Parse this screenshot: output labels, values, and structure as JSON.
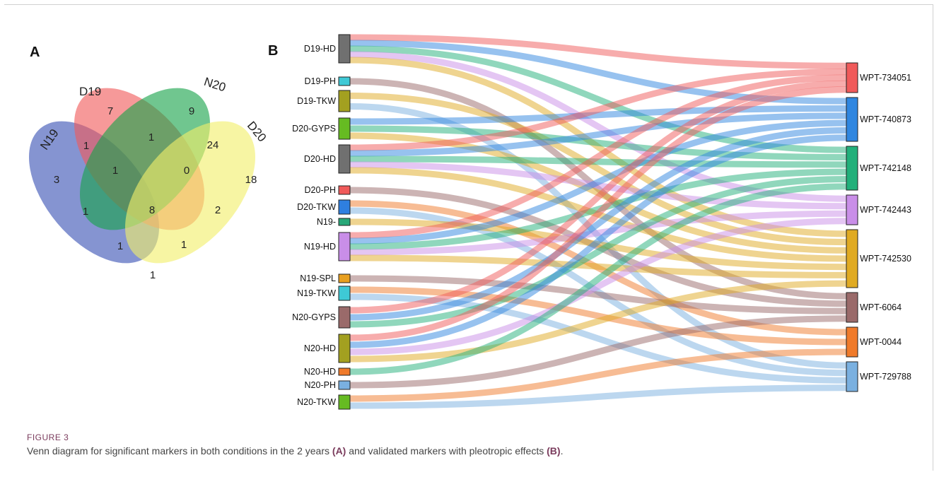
{
  "figure": {
    "label": "FIGURE 3",
    "caption_parts": [
      "Venn diagram for significant markers in both conditions in the 2 years ",
      "(A)",
      " and validated markers with pleotropic effects ",
      "(B)",
      "."
    ],
    "accent_color": "#7a3b5c"
  },
  "panel_a": {
    "letter": "A",
    "sets": [
      {
        "name": "N19",
        "color": "#3a52b5"
      },
      {
        "name": "D19",
        "color": "#f05a5a"
      },
      {
        "name": "N20",
        "color": "#18a34a"
      },
      {
        "name": "D20",
        "color": "#f2ef6a"
      }
    ],
    "counts": {
      "N19_only": "3",
      "D19_only": "7",
      "N20_only": "9",
      "D20_only": "18",
      "N19_D19": "1",
      "D19_N20": "1",
      "N20_D20": "24",
      "N19_D19_N20": "1",
      "D19_N20_D20": "0",
      "N19_N20": "1",
      "all": "8",
      "D19_D20": "2",
      "N19_N20_D20": "1",
      "N19_D19_D20": "1",
      "N19_D20": "1"
    }
  },
  "panel_b": {
    "letter": "B",
    "left_nodes": [
      {
        "label": "D19-HD",
        "color": "#707070"
      },
      {
        "label": "D19-PH",
        "color": "#3ec9d6"
      },
      {
        "label": "D19-TKW",
        "color": "#a3a020"
      },
      {
        "label": "D20-GYPS",
        "color": "#66bb22"
      },
      {
        "label": "D20-HD",
        "color": "#707070"
      },
      {
        "label": "D20-PH",
        "color": "#f05a5a"
      },
      {
        "label": "D20-TKW",
        "color": "#2f7fe0"
      },
      {
        "label": "N19-",
        "color": "#28a878"
      },
      {
        "label": "N19-HD",
        "color": "#c98ee8"
      },
      {
        "label": "N19-SPL",
        "color": "#e8a020"
      },
      {
        "label": "N19-TKW",
        "color": "#3ec9d6"
      },
      {
        "label": "N20-GYPS",
        "color": "#9a6a6a"
      },
      {
        "label": "N20-HD",
        "color": "#a3a020"
      },
      {
        "label": "N20-HD",
        "color": "#f07a2a"
      },
      {
        "label": "N20-PH",
        "color": "#7ab0e0"
      },
      {
        "label": "N20-TKW",
        "color": "#66bb22"
      }
    ],
    "right_nodes": [
      {
        "label": "WPT-734051",
        "color": "#f05a5a"
      },
      {
        "label": "WPT-740873",
        "color": "#2f86e0"
      },
      {
        "label": "WPT-742148",
        "color": "#22b07a"
      },
      {
        "label": "WPT-742443",
        "color": "#c98ee8"
      },
      {
        "label": "WPT-742530",
        "color": "#e0aa22"
      },
      {
        "label": "WPT-6064",
        "color": "#9a6a6a"
      },
      {
        "label": "WPT-0044",
        "color": "#f07a2a"
      },
      {
        "label": "WPT-729788",
        "color": "#7ab0e0"
      }
    ],
    "links": [
      [
        0,
        0
      ],
      [
        0,
        1
      ],
      [
        0,
        2
      ],
      [
        0,
        3
      ],
      [
        0,
        4
      ],
      [
        1,
        5
      ],
      [
        2,
        4
      ],
      [
        2,
        7
      ],
      [
        3,
        1
      ],
      [
        3,
        2
      ],
      [
        3,
        4
      ],
      [
        4,
        0
      ],
      [
        4,
        1
      ],
      [
        4,
        2
      ],
      [
        4,
        3
      ],
      [
        4,
        4
      ],
      [
        5,
        5
      ],
      [
        6,
        6
      ],
      [
        6,
        7
      ],
      [
        7,
        4
      ],
      [
        8,
        0
      ],
      [
        8,
        1
      ],
      [
        8,
        2
      ],
      [
        8,
        3
      ],
      [
        8,
        4
      ],
      [
        9,
        5
      ],
      [
        10,
        6
      ],
      [
        10,
        7
      ],
      [
        11,
        0
      ],
      [
        11,
        1
      ],
      [
        11,
        2
      ],
      [
        12,
        0
      ],
      [
        12,
        1
      ],
      [
        12,
        3
      ],
      [
        12,
        4
      ],
      [
        13,
        2
      ],
      [
        14,
        5
      ],
      [
        15,
        6
      ],
      [
        15,
        7
      ]
    ]
  }
}
